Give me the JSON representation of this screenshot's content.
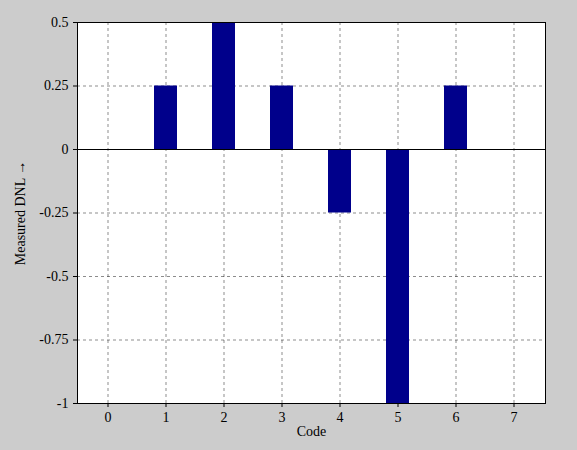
{
  "chart_data": {
    "type": "bar",
    "x_label": "Code",
    "y_label": "Measured DNL",
    "categories": [
      "0",
      "1",
      "2",
      "3",
      "4",
      "5",
      "6",
      "7"
    ],
    "values": [
      0,
      0.25,
      0.5,
      0.25,
      -0.25,
      -1,
      0.25,
      0
    ],
    "color": "#00008b",
    "ylim": [
      -1,
      0.5
    ],
    "yticks": [
      -1,
      -0.75,
      -0.5,
      -0.25,
      0,
      0.25,
      0.5
    ],
    "grid": true
  }
}
